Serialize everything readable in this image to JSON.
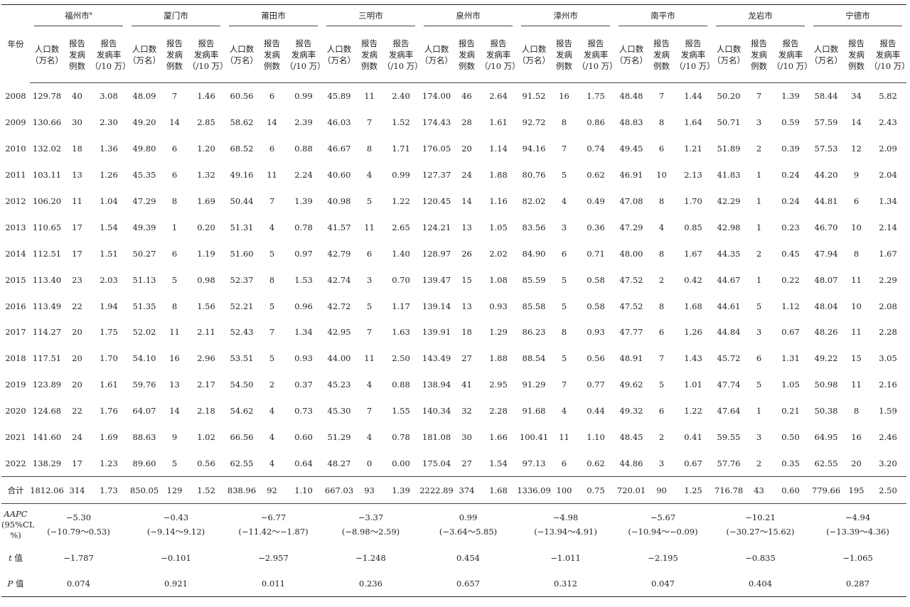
{
  "header": {
    "year_label": "年份",
    "cities": [
      "福州市",
      "厦门市",
      "莆田市",
      "三明市",
      "泉州市",
      "漳州市",
      "南平市",
      "龙岩市",
      "宁德市"
    ],
    "first_city_superscript": "a",
    "col_population": [
      "人口数",
      "（万名）"
    ],
    "col_cases": [
      "报告",
      "发病",
      "例数"
    ],
    "col_rate": [
      "报告",
      "发病率",
      "（/10 万）"
    ]
  },
  "rows": [
    {
      "year": "2008",
      "cells": [
        "129.78",
        "40",
        "3.08",
        "48.09",
        "7",
        "1.46",
        "60.56",
        "6",
        "0.99",
        "45.89",
        "11",
        "2.40",
        "174.00",
        "46",
        "2.64",
        "91.52",
        "16",
        "1.75",
        "48.48",
        "7",
        "1.44",
        "50.20",
        "7",
        "1.39",
        "58.44",
        "34",
        "5.82"
      ]
    },
    {
      "year": "2009",
      "cells": [
        "130.66",
        "30",
        "2.30",
        "49.20",
        "14",
        "2.85",
        "58.62",
        "14",
        "2.39",
        "46.03",
        "7",
        "1.52",
        "174.43",
        "28",
        "1.61",
        "92.72",
        "8",
        "0.86",
        "48.83",
        "8",
        "1.64",
        "50.71",
        "3",
        "0.59",
        "57.59",
        "14",
        "2.43"
      ]
    },
    {
      "year": "2010",
      "cells": [
        "132.02",
        "18",
        "1.36",
        "49.80",
        "6",
        "1.20",
        "68.52",
        "6",
        "0.88",
        "46.67",
        "8",
        "1.71",
        "176.05",
        "20",
        "1.14",
        "94.16",
        "7",
        "0.74",
        "49.45",
        "6",
        "1.21",
        "51.89",
        "2",
        "0.39",
        "57.53",
        "12",
        "2.09"
      ]
    },
    {
      "year": "2011",
      "cells": [
        "103.11",
        "13",
        "1.26",
        "45.35",
        "6",
        "1.32",
        "49.16",
        "11",
        "2.24",
        "40.60",
        "4",
        "0.99",
        "127.37",
        "24",
        "1.88",
        "80.76",
        "5",
        "0.62",
        "46.91",
        "10",
        "2.13",
        "41.83",
        "1",
        "0.24",
        "44.20",
        "9",
        "2.04"
      ]
    },
    {
      "year": "2012",
      "cells": [
        "106.20",
        "11",
        "1.04",
        "47.29",
        "8",
        "1.69",
        "50.44",
        "7",
        "1.39",
        "40.98",
        "5",
        "1.22",
        "120.45",
        "14",
        "1.16",
        "82.02",
        "4",
        "0.49",
        "47.08",
        "8",
        "1.70",
        "42.29",
        "1",
        "0.24",
        "44.81",
        "6",
        "1.34"
      ]
    },
    {
      "year": "2013",
      "cells": [
        "110.65",
        "17",
        "1.54",
        "49.39",
        "1",
        "0.20",
        "51.31",
        "4",
        "0.78",
        "41.57",
        "11",
        "2.65",
        "124.21",
        "13",
        "1.05",
        "83.56",
        "3",
        "0.36",
        "47.29",
        "4",
        "0.85",
        "42.98",
        "1",
        "0.23",
        "46.70",
        "10",
        "2.14"
      ]
    },
    {
      "year": "2014",
      "cells": [
        "112.51",
        "17",
        "1.51",
        "50.27",
        "6",
        "1.19",
        "51.60",
        "5",
        "0.97",
        "42.79",
        "6",
        "1.40",
        "128.97",
        "26",
        "2.02",
        "84.90",
        "6",
        "0.71",
        "48.00",
        "8",
        "1.67",
        "44.35",
        "2",
        "0.45",
        "47.94",
        "8",
        "1.67"
      ]
    },
    {
      "year": "2015",
      "cells": [
        "113.40",
        "23",
        "2.03",
        "51.13",
        "5",
        "0.98",
        "52.37",
        "8",
        "1.53",
        "42.74",
        "3",
        "0.70",
        "139.47",
        "15",
        "1.08",
        "85.59",
        "5",
        "0.58",
        "47.52",
        "2",
        "0.42",
        "44.67",
        "1",
        "0.22",
        "48.07",
        "11",
        "2.29"
      ]
    },
    {
      "year": "2016",
      "cells": [
        "113.49",
        "22",
        "1.94",
        "51.35",
        "8",
        "1.56",
        "52.21",
        "5",
        "0.96",
        "42.72",
        "5",
        "1.17",
        "139.14",
        "13",
        "0.93",
        "85.58",
        "5",
        "0.58",
        "47.52",
        "8",
        "1.68",
        "44.61",
        "5",
        "1.12",
        "48.04",
        "10",
        "2.08"
      ]
    },
    {
      "year": "2017",
      "cells": [
        "114.27",
        "20",
        "1.75",
        "52.02",
        "11",
        "2.11",
        "52.43",
        "7",
        "1.34",
        "42.95",
        "7",
        "1.63",
        "139.91",
        "18",
        "1.29",
        "86.23",
        "8",
        "0.93",
        "47.77",
        "6",
        "1.26",
        "44.84",
        "3",
        "0.67",
        "48.26",
        "11",
        "2.28"
      ]
    },
    {
      "year": "2018",
      "cells": [
        "117.51",
        "20",
        "1.70",
        "54.10",
        "16",
        "2.96",
        "53.51",
        "5",
        "0.93",
        "44.00",
        "11",
        "2.50",
        "143.49",
        "27",
        "1.88",
        "88.54",
        "5",
        "0.56",
        "48.91",
        "7",
        "1.43",
        "45.72",
        "6",
        "1.31",
        "49.22",
        "15",
        "3.05"
      ]
    },
    {
      "year": "2019",
      "cells": [
        "123.89",
        "20",
        "1.61",
        "59.76",
        "13",
        "2.17",
        "54.50",
        "2",
        "0.37",
        "45.23",
        "4",
        "0.88",
        "138.94",
        "41",
        "2.95",
        "91.29",
        "7",
        "0.77",
        "49.62",
        "5",
        "1.01",
        "47.74",
        "5",
        "1.05",
        "50.98",
        "11",
        "2.16"
      ]
    },
    {
      "year": "2020",
      "cells": [
        "124.68",
        "22",
        "1.76",
        "64.07",
        "14",
        "2.18",
        "54.62",
        "4",
        "0.73",
        "45.30",
        "7",
        "1.55",
        "140.34",
        "32",
        "2.28",
        "91.68",
        "4",
        "0.44",
        "49.32",
        "6",
        "1.22",
        "47.64",
        "1",
        "0.21",
        "50.38",
        "8",
        "1.59"
      ]
    },
    {
      "year": "2021",
      "cells": [
        "141.60",
        "24",
        "1.69",
        "88.63",
        "9",
        "1.02",
        "66.56",
        "4",
        "0.60",
        "51.29",
        "4",
        "0.78",
        "181.08",
        "30",
        "1.66",
        "100.41",
        "11",
        "1.10",
        "48.45",
        "2",
        "0.41",
        "59.55",
        "3",
        "0.50",
        "64.95",
        "16",
        "2.46"
      ]
    },
    {
      "year": "2022",
      "cells": [
        "138.29",
        "17",
        "1.23",
        "89.60",
        "5",
        "0.56",
        "62.55",
        "4",
        "0.64",
        "48.27",
        "0",
        "0.00",
        "175.04",
        "27",
        "1.54",
        "97.13",
        "6",
        "0.62",
        "44.86",
        "3",
        "0.67",
        "57.76",
        "2",
        "0.35",
        "62.55",
        "20",
        "3.20"
      ]
    }
  ],
  "total": {
    "label": "合计",
    "cells": [
      "1812.06",
      "314",
      "1.73",
      "850.05",
      "129",
      "1.52",
      "838.96",
      "92",
      "1.10",
      "667.03",
      "93",
      "1.39",
      "2222.89",
      "374",
      "1.68",
      "1336.09",
      "100",
      "0.75",
      "720.01",
      "90",
      "1.25",
      "716.78",
      "43",
      "0.60",
      "779.66",
      "195",
      "2.50"
    ]
  },
  "aapc": {
    "label_lines": [
      "AAPC",
      "(95%CI,",
      "%)"
    ],
    "values": [
      [
        "−5.30",
        "(−10.79～0.53)"
      ],
      [
        "−0.43",
        "(−9.14～9.12)"
      ],
      [
        "−6.77",
        "(−11.42～−1.87)"
      ],
      [
        "−3.37",
        "(−8.98～2.59)"
      ],
      [
        "0.99",
        "(−3.64～5.85)"
      ],
      [
        "−4.98",
        "(−13.94～4.91)"
      ],
      [
        "−5.67",
        "(−10.94～−0.09)"
      ],
      [
        "−10.21",
        "(−30.27～15.62)"
      ],
      [
        "−4.94",
        "(−13.39～4.36)"
      ]
    ]
  },
  "t_row": {
    "label_italic": "t",
    "label_rest": " 值",
    "values": [
      "−1.787",
      "−0.101",
      "−2.957",
      "−1.248",
      "0.454",
      "−1.011",
      "−2.195",
      "−0.835",
      "−1.065"
    ]
  },
  "p_row": {
    "label_italic": "P",
    "label_rest": " 值",
    "values": [
      "0.074",
      "0.921",
      "0.011",
      "0.236",
      "0.657",
      "0.312",
      "0.047",
      "0.404",
      "0.287"
    ]
  }
}
